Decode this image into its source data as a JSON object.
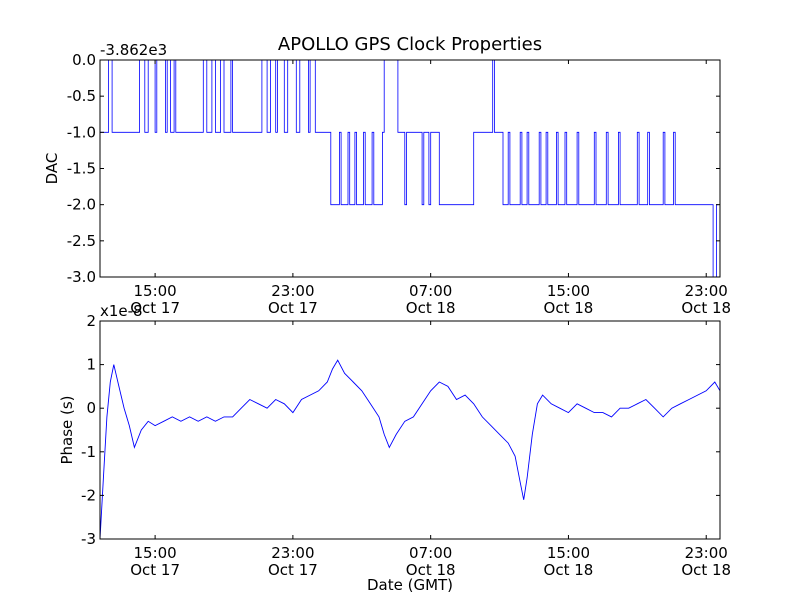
{
  "title": "APOLLO GPS Clock Properties",
  "line_color": "#0000ff",
  "chart_data": [
    {
      "type": "line",
      "ylabel": "DAC",
      "xlabel": "",
      "offset_label": "-3.862e3",
      "ylim": [
        -3.0,
        0.0
      ],
      "yticks": [
        {
          "value": 0.0,
          "label": "0.0"
        },
        {
          "value": -0.5,
          "label": "-0.5"
        },
        {
          "value": -1.0,
          "label": "-1.0"
        },
        {
          "value": -1.5,
          "label": "-1.5"
        },
        {
          "value": -2.0,
          "label": "-2.0"
        },
        {
          "value": -2.5,
          "label": "-2.5"
        },
        {
          "value": -3.0,
          "label": "-3.0"
        }
      ],
      "xlim_hours": [
        11.8,
        47.8
      ],
      "xticks": [
        {
          "hour": 15,
          "time": "15:00",
          "date": "Oct 17"
        },
        {
          "hour": 23,
          "time": "23:00",
          "date": "Oct 17"
        },
        {
          "hour": 31,
          "time": "07:00",
          "date": "Oct 18"
        },
        {
          "hour": 39,
          "time": "15:00",
          "date": "Oct 18"
        },
        {
          "hour": 47,
          "time": "23:00",
          "date": "Oct 18"
        }
      ],
      "series": [
        {
          "hours": [
            11.8,
            12.1,
            12.3,
            12.5,
            14.0,
            14.1,
            14.4,
            14.6,
            15.0,
            15.1,
            15.6,
            15.7,
            15.9,
            16.1,
            16.2,
            16.5,
            17.8,
            18.0,
            18.3,
            18.5,
            18.8,
            19.0,
            19.4,
            19.5,
            21.0,
            21.2,
            21.5,
            21.7,
            22.0,
            22.1,
            22.5,
            22.7,
            23.2,
            23.4,
            23.9,
            24.0,
            24.3,
            24.4,
            25.0,
            25.2,
            25.7,
            25.8,
            26.2,
            26.3,
            26.6,
            26.7,
            27.1,
            27.2,
            27.6,
            27.7,
            28.2,
            28.3,
            29.1,
            29.2,
            29.5,
            29.6,
            30.5,
            30.6,
            30.9,
            31.0,
            31.5,
            31.6,
            32.0,
            32.1,
            33.4,
            33.5,
            34.6,
            34.7,
            35.1,
            35.2,
            35.5,
            35.6,
            36.2,
            36.3,
            36.6,
            36.7,
            37.3,
            37.4,
            37.7,
            37.8,
            38.3,
            38.4,
            38.8,
            38.9,
            39.5,
            39.6,
            40.5,
            40.6,
            41.2,
            41.3,
            41.9,
            42.0,
            43.0,
            43.1,
            43.6,
            43.7,
            44.5,
            44.6,
            45.1,
            45.2,
            47.3,
            47.4,
            47.6,
            47.7
          ],
          "values": [
            -1,
            -1,
            0,
            -1,
            -1,
            0,
            -1,
            0,
            -1,
            0,
            -1,
            0,
            -1,
            0,
            -1,
            -1,
            0,
            -1,
            0,
            -1,
            0,
            -1,
            0,
            -1,
            -1,
            0,
            -1,
            0,
            -1,
            0,
            -1,
            0,
            -1,
            0,
            -1,
            0,
            -1,
            -1,
            -1,
            -2,
            -1,
            -2,
            -1,
            -2,
            -1,
            -2,
            -1,
            -2,
            -1,
            -2,
            -1,
            0,
            -1,
            -1,
            -2,
            -1,
            -2,
            -1,
            -2,
            -1,
            -2,
            -2,
            -2,
            -2,
            -2,
            -1,
            0,
            -1,
            -1,
            -2,
            -1,
            -2,
            -1,
            -2,
            -1,
            -2,
            -1,
            -2,
            -1,
            -2,
            -1,
            -2,
            -1,
            -2,
            -1,
            -2,
            -1,
            -2,
            -1,
            -2,
            -1,
            -2,
            -1,
            -2,
            -1,
            -2,
            -1,
            -2,
            -1,
            -2,
            -2,
            -3,
            -2,
            -2
          ]
        }
      ]
    },
    {
      "type": "line",
      "ylabel": "Phase (s)",
      "xlabel": "Date (GMT)",
      "offset_label": "x1e-8",
      "ylim": [
        -3,
        2
      ],
      "yticks": [
        {
          "value": 2,
          "label": "2"
        },
        {
          "value": 1,
          "label": "1"
        },
        {
          "value": 0,
          "label": "0"
        },
        {
          "value": -1,
          "label": "-1"
        },
        {
          "value": -2,
          "label": "-2"
        },
        {
          "value": -3,
          "label": "-3"
        }
      ],
      "xlim_hours": [
        11.8,
        47.8
      ],
      "xticks": [
        {
          "hour": 15,
          "time": "15:00",
          "date": "Oct 17"
        },
        {
          "hour": 23,
          "time": "23:00",
          "date": "Oct 17"
        },
        {
          "hour": 31,
          "time": "07:00",
          "date": "Oct 18"
        },
        {
          "hour": 39,
          "time": "15:00",
          "date": "Oct 18"
        },
        {
          "hour": 47,
          "time": "23:00",
          "date": "Oct 18"
        }
      ],
      "series": [
        {
          "hours": [
            11.8,
            12.0,
            12.2,
            12.4,
            12.6,
            12.9,
            13.2,
            13.5,
            13.8,
            14.2,
            14.6,
            15.0,
            15.5,
            16.0,
            16.5,
            17.0,
            17.5,
            18.0,
            18.5,
            19.0,
            19.5,
            20.0,
            20.5,
            21.0,
            21.5,
            22.0,
            22.5,
            23.0,
            23.5,
            24.0,
            24.5,
            25.0,
            25.3,
            25.6,
            26.0,
            26.5,
            27.0,
            27.5,
            28.0,
            28.3,
            28.6,
            29.0,
            29.5,
            30.0,
            30.5,
            31.0,
            31.5,
            32.0,
            32.5,
            33.0,
            33.5,
            34.0,
            34.5,
            35.0,
            35.5,
            35.9,
            36.2,
            36.4,
            36.6,
            36.9,
            37.2,
            37.5,
            38.0,
            38.5,
            39.0,
            39.5,
            40.0,
            40.5,
            41.0,
            41.5,
            42.0,
            42.5,
            43.0,
            43.5,
            44.0,
            44.5,
            45.0,
            45.5,
            46.0,
            46.5,
            47.0,
            47.5,
            47.8
          ],
          "values": [
            -3.0,
            -1.6,
            -0.2,
            0.6,
            1.0,
            0.5,
            0.0,
            -0.4,
            -0.9,
            -0.5,
            -0.3,
            -0.4,
            -0.3,
            -0.2,
            -0.3,
            -0.2,
            -0.3,
            -0.2,
            -0.3,
            -0.2,
            -0.2,
            0.0,
            0.2,
            0.1,
            0.0,
            0.2,
            0.1,
            -0.1,
            0.2,
            0.3,
            0.4,
            0.6,
            0.9,
            1.1,
            0.8,
            0.6,
            0.4,
            0.1,
            -0.2,
            -0.6,
            -0.9,
            -0.6,
            -0.3,
            -0.2,
            0.1,
            0.4,
            0.6,
            0.5,
            0.2,
            0.3,
            0.1,
            -0.2,
            -0.4,
            -0.6,
            -0.8,
            -1.1,
            -1.7,
            -2.1,
            -1.6,
            -0.6,
            0.1,
            0.3,
            0.1,
            0.0,
            -0.1,
            0.1,
            0.0,
            -0.1,
            -0.1,
            -0.2,
            0.0,
            0.0,
            0.1,
            0.2,
            0.0,
            -0.2,
            0.0,
            0.1,
            0.2,
            0.3,
            0.4,
            0.6,
            0.4
          ]
        }
      ]
    }
  ]
}
